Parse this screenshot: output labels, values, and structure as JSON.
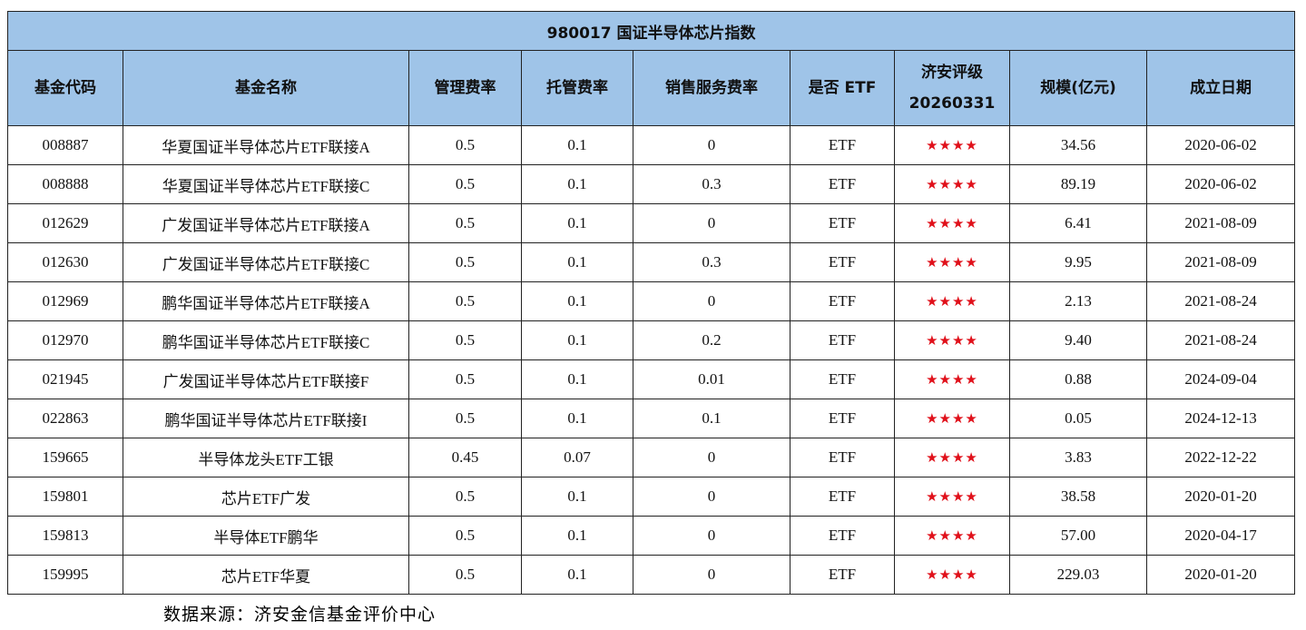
{
  "title": "980017 国证半导体芯片指数",
  "table": {
    "headers": [
      [
        "基金代码"
      ],
      [
        "基金名称"
      ],
      [
        "管理费率"
      ],
      [
        "托管费率"
      ],
      [
        "销售服务费率"
      ],
      [
        "是否 ETF"
      ],
      [
        "济安评级",
        "20260331"
      ],
      [
        "规模(亿元)"
      ],
      [
        "成立日期"
      ]
    ],
    "rows": [
      [
        "008887",
        "华夏国证半导体芯片ETF联接A",
        "0.5",
        "0.1",
        "0",
        "ETF",
        "★★★★",
        "34.56",
        "2020-06-02"
      ],
      [
        "008888",
        "华夏国证半导体芯片ETF联接C",
        "0.5",
        "0.1",
        "0.3",
        "ETF",
        "★★★★",
        "89.19",
        "2020-06-02"
      ],
      [
        "012629",
        "广发国证半导体芯片ETF联接A",
        "0.5",
        "0.1",
        "0",
        "ETF",
        "★★★★",
        "6.41",
        "2021-08-09"
      ],
      [
        "012630",
        "广发国证半导体芯片ETF联接C",
        "0.5",
        "0.1",
        "0.3",
        "ETF",
        "★★★★",
        "9.95",
        "2021-08-09"
      ],
      [
        "012969",
        "鹏华国证半导体芯片ETF联接A",
        "0.5",
        "0.1",
        "0",
        "ETF",
        "★★★★",
        "2.13",
        "2021-08-24"
      ],
      [
        "012970",
        "鹏华国证半导体芯片ETF联接C",
        "0.5",
        "0.1",
        "0.2",
        "ETF",
        "★★★★",
        "9.40",
        "2021-08-24"
      ],
      [
        "021945",
        "广发国证半导体芯片ETF联接F",
        "0.5",
        "0.1",
        "0.01",
        "ETF",
        "★★★★",
        "0.88",
        "2024-09-04"
      ],
      [
        "022863",
        "鹏华国证半导体芯片ETF联接I",
        "0.5",
        "0.1",
        "0.1",
        "ETF",
        "★★★★",
        "0.05",
        "2024-12-13"
      ],
      [
        "159665",
        "半导体龙头ETF工银",
        "0.45",
        "0.07",
        "0",
        "ETF",
        "★★★★",
        "3.83",
        "2022-12-22"
      ],
      [
        "159801",
        "芯片ETF广发",
        "0.5",
        "0.1",
        "0",
        "ETF",
        "★★★★",
        "38.58",
        "2020-01-20"
      ],
      [
        "159813",
        "半导体ETF鹏华",
        "0.5",
        "0.1",
        "0",
        "ETF",
        "★★★★",
        "57.00",
        "2020-04-17"
      ],
      [
        "159995",
        "芯片ETF华夏",
        "0.5",
        "0.1",
        "0",
        "ETF",
        "★★★★",
        "229.03",
        "2020-01-20"
      ]
    ]
  },
  "source": "数据来源：济安金信基金评价中心"
}
